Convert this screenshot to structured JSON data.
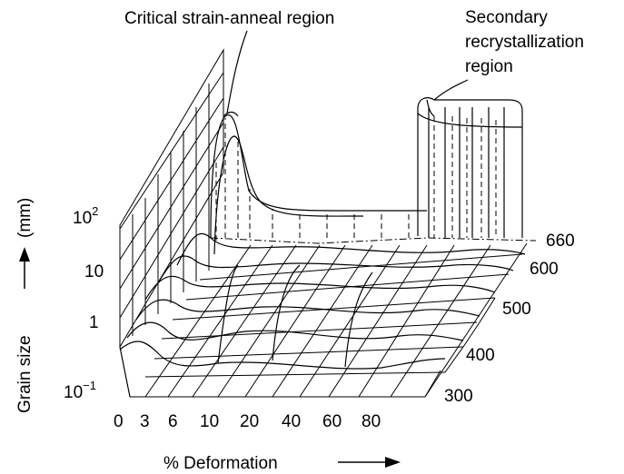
{
  "annotations": {
    "critical": "Critical strain-anneal region",
    "secondary_line1": "Secondary",
    "secondary_line2": "recrystallization",
    "secondary_line3": "region"
  },
  "axes": {
    "x_label": "% Deformation",
    "y_label_main": "Grain size",
    "y_label_unit": "(mm)",
    "x_ticks": [
      "0",
      "3",
      "6",
      "10",
      "20",
      "40",
      "60",
      "80"
    ],
    "z_ticks": [
      "300",
      "400",
      "500",
      "600",
      "660"
    ],
    "y_ticks": {
      "t0_base": "10",
      "t0_exp": "−1",
      "t1": "1",
      "t2": "10",
      "t3_base": "10",
      "t3_exp": "2"
    }
  }
}
